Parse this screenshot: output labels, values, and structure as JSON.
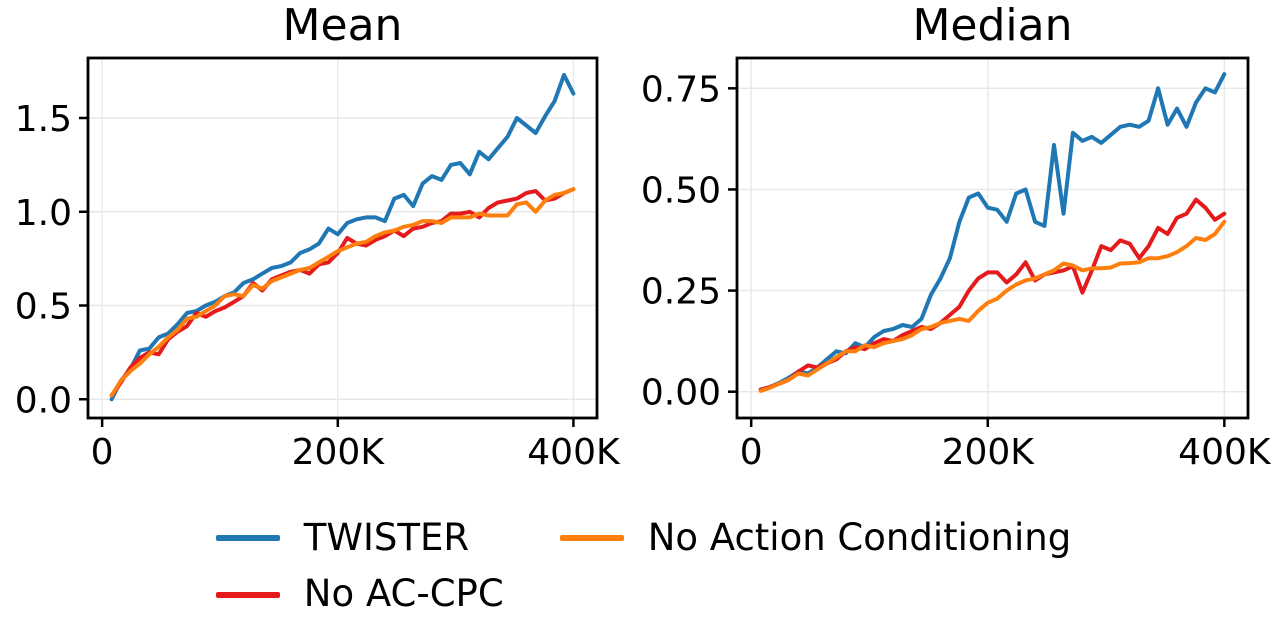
{
  "figure": {
    "background": "#ffffff"
  },
  "legend": {
    "items": [
      {
        "label": "TWISTER",
        "color": "#1f77b4"
      },
      {
        "label": "No Action Conditioning",
        "color": "#ff7f0e"
      },
      {
        "label": "No AC-CPC",
        "color": "#e41a1c"
      }
    ]
  },
  "chart_data": [
    {
      "type": "line",
      "title": "Mean",
      "xlabel": "",
      "ylabel": "",
      "grid": true,
      "legend_position": "below-figure",
      "xlim": [
        -12,
        420
      ],
      "ylim": [
        -0.1,
        1.82
      ],
      "xticks": [
        {
          "value": 0,
          "label": "0"
        },
        {
          "value": 200,
          "label": "200K"
        },
        {
          "value": 400,
          "label": "400K"
        }
      ],
      "yticks": [
        {
          "value": 0.0,
          "label": "0.0"
        },
        {
          "value": 0.5,
          "label": "0.5"
        },
        {
          "value": 1.0,
          "label": "1.0"
        },
        {
          "value": 1.5,
          "label": "1.5"
        }
      ],
      "x": [
        8,
        16,
        24,
        32,
        40,
        48,
        56,
        64,
        72,
        80,
        88,
        96,
        104,
        112,
        120,
        128,
        136,
        144,
        152,
        160,
        168,
        176,
        184,
        192,
        200,
        208,
        216,
        224,
        232,
        240,
        248,
        256,
        264,
        272,
        280,
        288,
        296,
        304,
        312,
        320,
        328,
        336,
        344,
        352,
        360,
        368,
        376,
        384,
        392,
        400
      ],
      "series": [
        {
          "name": "TWISTER",
          "color": "#1f77b4",
          "values": [
            0.0,
            0.1,
            0.16,
            0.26,
            0.27,
            0.33,
            0.35,
            0.4,
            0.46,
            0.47,
            0.5,
            0.52,
            0.55,
            0.57,
            0.62,
            0.64,
            0.67,
            0.7,
            0.71,
            0.73,
            0.78,
            0.8,
            0.83,
            0.91,
            0.88,
            0.94,
            0.96,
            0.97,
            0.97,
            0.95,
            1.07,
            1.09,
            1.03,
            1.15,
            1.19,
            1.17,
            1.25,
            1.26,
            1.2,
            1.32,
            1.28,
            1.34,
            1.4,
            1.5,
            1.46,
            1.42,
            1.51,
            1.59,
            1.73,
            1.63
          ]
        },
        {
          "name": "No AC-CPC",
          "color": "#e41a1c",
          "values": [
            0.02,
            0.09,
            0.17,
            0.22,
            0.25,
            0.24,
            0.32,
            0.36,
            0.39,
            0.46,
            0.44,
            0.47,
            0.49,
            0.52,
            0.55,
            0.62,
            0.58,
            0.64,
            0.66,
            0.68,
            0.69,
            0.67,
            0.72,
            0.73,
            0.78,
            0.86,
            0.83,
            0.82,
            0.85,
            0.87,
            0.9,
            0.87,
            0.91,
            0.92,
            0.94,
            0.95,
            0.99,
            0.99,
            1.0,
            0.97,
            1.02,
            1.05,
            1.06,
            1.07,
            1.1,
            1.11,
            1.06,
            1.07,
            1.1,
            1.12
          ]
        },
        {
          "name": "No Action Conditioning",
          "color": "#ff7f0e",
          "values": [
            0.02,
            0.1,
            0.15,
            0.19,
            0.24,
            0.28,
            0.33,
            0.37,
            0.43,
            0.44,
            0.47,
            0.5,
            0.55,
            0.56,
            0.55,
            0.61,
            0.59,
            0.63,
            0.65,
            0.67,
            0.69,
            0.7,
            0.73,
            0.76,
            0.79,
            0.81,
            0.83,
            0.84,
            0.87,
            0.89,
            0.9,
            0.92,
            0.93,
            0.95,
            0.95,
            0.94,
            0.97,
            0.97,
            0.97,
            0.99,
            0.98,
            0.98,
            0.98,
            1.04,
            1.05,
            1.0,
            1.06,
            1.09,
            1.1,
            1.12
          ]
        }
      ]
    },
    {
      "type": "line",
      "title": "Median",
      "xlabel": "",
      "ylabel": "",
      "grid": true,
      "legend_position": "below-figure",
      "xlim": [
        -12,
        420
      ],
      "ylim": [
        -0.065,
        0.825
      ],
      "xticks": [
        {
          "value": 0,
          "label": "0"
        },
        {
          "value": 200,
          "label": "200K"
        },
        {
          "value": 400,
          "label": "400K"
        }
      ],
      "yticks": [
        {
          "value": 0.0,
          "label": "0.00"
        },
        {
          "value": 0.25,
          "label": "0.25"
        },
        {
          "value": 0.5,
          "label": "0.50"
        },
        {
          "value": 0.75,
          "label": "0.75"
        }
      ],
      "x": [
        8,
        16,
        24,
        32,
        40,
        48,
        56,
        64,
        72,
        80,
        88,
        96,
        104,
        112,
        120,
        128,
        136,
        144,
        152,
        160,
        168,
        176,
        184,
        192,
        200,
        208,
        216,
        224,
        232,
        240,
        248,
        256,
        264,
        272,
        280,
        288,
        296,
        304,
        312,
        320,
        328,
        336,
        344,
        352,
        360,
        368,
        376,
        384,
        392,
        400
      ],
      "series": [
        {
          "name": "TWISTER",
          "color": "#1f77b4",
          "values": [
            0.005,
            0.012,
            0.022,
            0.035,
            0.05,
            0.045,
            0.06,
            0.08,
            0.1,
            0.095,
            0.12,
            0.11,
            0.135,
            0.15,
            0.155,
            0.165,
            0.16,
            0.18,
            0.24,
            0.28,
            0.33,
            0.42,
            0.48,
            0.49,
            0.455,
            0.45,
            0.42,
            0.49,
            0.5,
            0.42,
            0.41,
            0.61,
            0.44,
            0.64,
            0.62,
            0.63,
            0.615,
            0.635,
            0.655,
            0.66,
            0.655,
            0.67,
            0.75,
            0.66,
            0.7,
            0.655,
            0.715,
            0.75,
            0.74,
            0.785
          ]
        },
        {
          "name": "No AC-CPC",
          "color": "#e41a1c",
          "values": [
            0.005,
            0.012,
            0.02,
            0.03,
            0.05,
            0.065,
            0.06,
            0.07,
            0.08,
            0.1,
            0.11,
            0.105,
            0.12,
            0.13,
            0.125,
            0.14,
            0.15,
            0.16,
            0.155,
            0.17,
            0.19,
            0.21,
            0.25,
            0.28,
            0.295,
            0.295,
            0.27,
            0.29,
            0.32,
            0.275,
            0.29,
            0.295,
            0.3,
            0.31,
            0.245,
            0.3,
            0.36,
            0.35,
            0.374,
            0.366,
            0.33,
            0.36,
            0.405,
            0.39,
            0.43,
            0.44,
            0.475,
            0.455,
            0.425,
            0.44
          ]
        },
        {
          "name": "No Action Conditioning",
          "color": "#ff7f0e",
          "values": [
            0.002,
            0.01,
            0.02,
            0.03,
            0.045,
            0.04,
            0.055,
            0.07,
            0.085,
            0.1,
            0.1,
            0.115,
            0.11,
            0.12,
            0.125,
            0.13,
            0.14,
            0.155,
            0.16,
            0.17,
            0.175,
            0.18,
            0.175,
            0.2,
            0.22,
            0.23,
            0.25,
            0.265,
            0.275,
            0.28,
            0.29,
            0.3,
            0.317,
            0.312,
            0.3,
            0.305,
            0.305,
            0.307,
            0.317,
            0.318,
            0.32,
            0.33,
            0.33,
            0.335,
            0.345,
            0.36,
            0.38,
            0.375,
            0.39,
            0.42
          ]
        }
      ]
    }
  ]
}
